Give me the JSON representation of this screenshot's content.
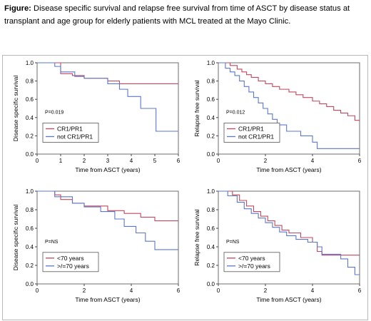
{
  "caption": {
    "label": "Figure:",
    "text": " Disease specific survival and relapse free survival from time of ASCT by disease status at transplant and age group for elderly patients with MCL treated at the Mayo Clinic."
  },
  "colors": {
    "red": "#c0485f",
    "blue": "#5b78cc",
    "frame": "#6e6e6e"
  },
  "chart_data": [
    {
      "type": "line",
      "subtype": "kaplan-meier",
      "xlabel": "Time from ASCT (years)",
      "ylabel": "Disease specific survival",
      "xlim": [
        0,
        6
      ],
      "ylim": [
        0,
        1
      ],
      "xticks": [
        0,
        1,
        2,
        3,
        4,
        5,
        6
      ],
      "yticks": [
        0.0,
        0.2,
        0.4,
        0.6,
        0.8,
        1.0
      ],
      "annotation": "P=0.019",
      "legend": "bottom-left",
      "series": [
        {
          "name": "CR1/PR1",
          "color": "red",
          "steps": [
            [
              0,
              1.0
            ],
            [
              1.0,
              0.95
            ],
            [
              1.0,
              0.88
            ],
            [
              1.5,
              0.86
            ],
            [
              2.0,
              0.83
            ],
            [
              3.0,
              0.8
            ],
            [
              3.5,
              0.77
            ],
            [
              6,
              0.77
            ]
          ]
        },
        {
          "name": "not CR1/PR1",
          "color": "blue",
          "steps": [
            [
              0,
              1.0
            ],
            [
              0.75,
              0.96
            ],
            [
              1.0,
              0.9
            ],
            [
              1.6,
              0.85
            ],
            [
              2.0,
              0.83
            ],
            [
              3.0,
              0.77
            ],
            [
              3.5,
              0.71
            ],
            [
              3.85,
              0.63
            ],
            [
              4.4,
              0.5
            ],
            [
              5.05,
              0.25
            ],
            [
              6,
              0.25
            ]
          ]
        }
      ]
    },
    {
      "type": "line",
      "subtype": "kaplan-meier",
      "xlabel": "Time from ASCT (years)",
      "ylabel": "Relapse free survival",
      "xlim": [
        0,
        6
      ],
      "ylim": [
        0,
        1
      ],
      "xticks": [
        0,
        2,
        4,
        6
      ],
      "yticks": [
        0.0,
        0.2,
        0.4,
        0.6,
        0.8,
        1.0
      ],
      "annotation": "P=0.012",
      "legend": "bottom-left",
      "series": [
        {
          "name": "CR1/PR1",
          "color": "red",
          "steps": [
            [
              0,
              1.0
            ],
            [
              0.5,
              0.97
            ],
            [
              0.8,
              0.93
            ],
            [
              1.0,
              0.9
            ],
            [
              1.2,
              0.87
            ],
            [
              1.4,
              0.84
            ],
            [
              1.7,
              0.8
            ],
            [
              2.0,
              0.77
            ],
            [
              2.3,
              0.74
            ],
            [
              2.6,
              0.71
            ],
            [
              3.0,
              0.68
            ],
            [
              3.3,
              0.65
            ],
            [
              3.6,
              0.62
            ],
            [
              4.0,
              0.58
            ],
            [
              4.3,
              0.55
            ],
            [
              4.6,
              0.52
            ],
            [
              4.9,
              0.48
            ],
            [
              5.2,
              0.45
            ],
            [
              5.5,
              0.42
            ],
            [
              5.8,
              0.37
            ],
            [
              6,
              0.37
            ]
          ]
        },
        {
          "name": "not CR1/PR1",
          "color": "blue",
          "steps": [
            [
              0,
              1.0
            ],
            [
              0.3,
              0.94
            ],
            [
              0.5,
              0.9
            ],
            [
              0.7,
              0.86
            ],
            [
              0.9,
              0.8
            ],
            [
              1.1,
              0.74
            ],
            [
              1.3,
              0.68
            ],
            [
              1.5,
              0.62
            ],
            [
              1.7,
              0.56
            ],
            [
              1.9,
              0.5
            ],
            [
              2.1,
              0.44
            ],
            [
              2.3,
              0.38
            ],
            [
              2.5,
              0.32
            ],
            [
              2.9,
              0.25
            ],
            [
              3.5,
              0.2
            ],
            [
              4.0,
              0.13
            ],
            [
              4.2,
              0.06
            ],
            [
              6,
              0.06
            ]
          ]
        }
      ]
    },
    {
      "type": "line",
      "subtype": "kaplan-meier",
      "xlabel": "Time from ASCT (years)",
      "ylabel": "Disease specific survival",
      "xlim": [
        0,
        6
      ],
      "ylim": [
        0,
        1
      ],
      "xticks": [
        0,
        2,
        4,
        6
      ],
      "yticks": [
        0.0,
        0.2,
        0.4,
        0.6,
        0.8,
        1.0
      ],
      "annotation": "P=NS",
      "legend": "bottom-left",
      "series": [
        {
          "name": "<70 years",
          "color": "red",
          "steps": [
            [
              0,
              1.0
            ],
            [
              0.75,
              0.96
            ],
            [
              1.0,
              0.91
            ],
            [
              1.5,
              0.87
            ],
            [
              2.0,
              0.84
            ],
            [
              3.0,
              0.79
            ],
            [
              3.7,
              0.76
            ],
            [
              4.4,
              0.72
            ],
            [
              5.0,
              0.68
            ],
            [
              6,
              0.68
            ]
          ]
        },
        {
          "name": ">/=70 years",
          "color": "blue",
          "steps": [
            [
              0,
              1.0
            ],
            [
              0.75,
              0.94
            ],
            [
              1.5,
              0.87
            ],
            [
              2.0,
              0.83
            ],
            [
              2.7,
              0.78
            ],
            [
              3.3,
              0.7
            ],
            [
              3.7,
              0.62
            ],
            [
              4.2,
              0.55
            ],
            [
              4.6,
              0.46
            ],
            [
              5.0,
              0.37
            ],
            [
              6,
              0.37
            ]
          ]
        }
      ]
    },
    {
      "type": "line",
      "subtype": "kaplan-meier",
      "xlabel": "Time from ASCT (years)",
      "ylabel": "Relapse free survival",
      "xlim": [
        0,
        6
      ],
      "ylim": [
        0,
        1
      ],
      "xticks": [
        0,
        2,
        4,
        6
      ],
      "yticks": [
        0.0,
        0.2,
        0.4,
        0.6,
        0.8,
        1.0
      ],
      "annotation": "P=NS",
      "legend": "bottom-left",
      "series": [
        {
          "name": "<70 years",
          "color": "red",
          "steps": [
            [
              0,
              1.0
            ],
            [
              0.6,
              0.96
            ],
            [
              0.9,
              0.9
            ],
            [
              1.2,
              0.84
            ],
            [
              1.5,
              0.78
            ],
            [
              1.8,
              0.73
            ],
            [
              2.1,
              0.68
            ],
            [
              2.4,
              0.63
            ],
            [
              2.7,
              0.58
            ],
            [
              3.0,
              0.55
            ],
            [
              3.5,
              0.5
            ],
            [
              4.0,
              0.45
            ],
            [
              4.2,
              0.35
            ],
            [
              4.4,
              0.31
            ],
            [
              6,
              0.31
            ]
          ]
        },
        {
          "name": ">/=70 years",
          "color": "blue",
          "steps": [
            [
              0,
              1.0
            ],
            [
              0.4,
              0.95
            ],
            [
              0.8,
              0.88
            ],
            [
              1.1,
              0.81
            ],
            [
              1.4,
              0.76
            ],
            [
              1.7,
              0.71
            ],
            [
              2.0,
              0.66
            ],
            [
              2.3,
              0.61
            ],
            [
              2.6,
              0.56
            ],
            [
              2.9,
              0.52
            ],
            [
              3.3,
              0.48
            ],
            [
              3.8,
              0.45
            ],
            [
              4.2,
              0.4
            ],
            [
              4.4,
              0.32
            ],
            [
              5.2,
              0.27
            ],
            [
              5.5,
              0.18
            ],
            [
              5.8,
              0.1
            ],
            [
              6,
              0.1
            ]
          ]
        }
      ]
    }
  ]
}
